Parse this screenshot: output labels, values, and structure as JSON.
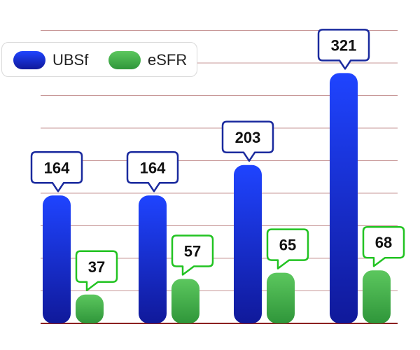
{
  "chart_data": {
    "type": "bar",
    "categories": [
      "",
      "",
      "",
      ""
    ],
    "series": [
      {
        "name": "UBSf",
        "values": [
          164,
          164,
          203,
          321
        ],
        "color": "#1a3cf0"
      },
      {
        "name": "eSFR",
        "values": [
          37,
          57,
          65,
          68
        ],
        "color": "#44b54c"
      }
    ],
    "ylim": [
      0,
      350
    ],
    "grid": true,
    "legend": "top-left",
    "data_labels": true,
    "colors": {
      "gridline": "#c79797",
      "baseline": "#8b2020",
      "ubsf_callout_border": "#1a2a9e",
      "esfr_callout_border": "#22c322"
    }
  }
}
